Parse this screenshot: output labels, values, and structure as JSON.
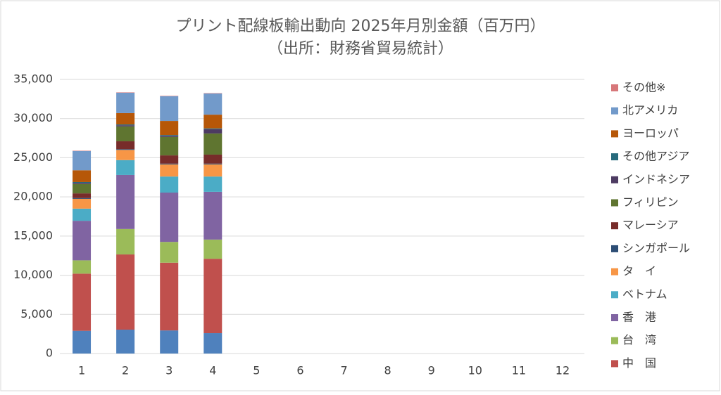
{
  "chart_data": {
    "type": "bar",
    "stacked": true,
    "title": "プリント配線板輸出動向 2025年月別金額（百万円）",
    "subtitle": "（出所：財務省貿易統計）",
    "categories": [
      1,
      2,
      3,
      4,
      5,
      6,
      7,
      8,
      9,
      10,
      11,
      12
    ],
    "ylim": [
      0,
      35000
    ],
    "yticks": [
      0,
      {
        "value": 5000,
        "label": "5,000"
      },
      {
        "value": 10000,
        "label": "10,000"
      },
      {
        "value": 15000,
        "label": "15,000"
      },
      {
        "value": 20000,
        "label": "20,000"
      },
      {
        "value": 25000,
        "label": "25,000"
      },
      {
        "value": 30000,
        "label": "30,000"
      },
      {
        "value": 35000,
        "label": "35,000"
      }
    ],
    "legend": "right",
    "series": [
      {
        "color": "#4f81bd",
        "values": [
          2900,
          3050,
          2950,
          2600,
          null,
          null,
          null,
          null,
          null,
          null,
          null,
          null
        ]
      },
      {
        "name": "中　国",
        "color": "#c0504d",
        "values": [
          7300,
          9600,
          8650,
          9500,
          null,
          null,
          null,
          null,
          null,
          null,
          null,
          null
        ]
      },
      {
        "name": "台　湾",
        "color": "#9bbb59",
        "values": [
          1700,
          3250,
          2650,
          2450,
          null,
          null,
          null,
          null,
          null,
          null,
          null,
          null
        ]
      },
      {
        "name": "香　港",
        "color": "#8064a2",
        "values": [
          5050,
          6900,
          6300,
          6100,
          null,
          null,
          null,
          null,
          null,
          null,
          null,
          null
        ]
      },
      {
        "name": "ベトナム",
        "color": "#4bacc6",
        "values": [
          1550,
          1900,
          2050,
          1950,
          null,
          null,
          null,
          null,
          null,
          null,
          null,
          null
        ]
      },
      {
        "name": "タ　イ",
        "color": "#f79646",
        "values": [
          1250,
          1300,
          1550,
          1550,
          null,
          null,
          null,
          null,
          null,
          null,
          null,
          null
        ]
      },
      {
        "name": "シンガポール",
        "color": "#2c4d75",
        "values": [
          100,
          100,
          100,
          100,
          null,
          null,
          null,
          null,
          null,
          null,
          null,
          null
        ]
      },
      {
        "name": "マレーシア",
        "color": "#772c2a",
        "values": [
          600,
          1000,
          1050,
          1150,
          null,
          null,
          null,
          null,
          null,
          null,
          null,
          null
        ]
      },
      {
        "name": "フィリピン",
        "color": "#5f7530",
        "values": [
          1200,
          1900,
          2350,
          2700,
          null,
          null,
          null,
          null,
          null,
          null,
          null,
          null
        ]
      },
      {
        "name": "インドネシア",
        "color": "#4d3b62",
        "values": [
          150,
          150,
          150,
          550,
          null,
          null,
          null,
          null,
          null,
          null,
          null,
          null
        ]
      },
      {
        "name": "その他アジア",
        "color": "#276a7c",
        "values": [
          100,
          100,
          100,
          100,
          null,
          null,
          null,
          null,
          null,
          null,
          null,
          null
        ]
      },
      {
        "name": "ヨーロッパ",
        "color": "#b65708",
        "values": [
          1500,
          1450,
          1800,
          1750,
          null,
          null,
          null,
          null,
          null,
          null,
          null,
          null
        ]
      },
      {
        "name": "北アメリカ",
        "color": "#729aca",
        "values": [
          2450,
          2600,
          3150,
          2700,
          null,
          null,
          null,
          null,
          null,
          null,
          null,
          null
        ]
      },
      {
        "name": "その他※",
        "color": "#d7777a",
        "values": [
          50,
          50,
          50,
          50,
          null,
          null,
          null,
          null,
          null,
          null,
          null,
          null
        ]
      }
    ]
  }
}
